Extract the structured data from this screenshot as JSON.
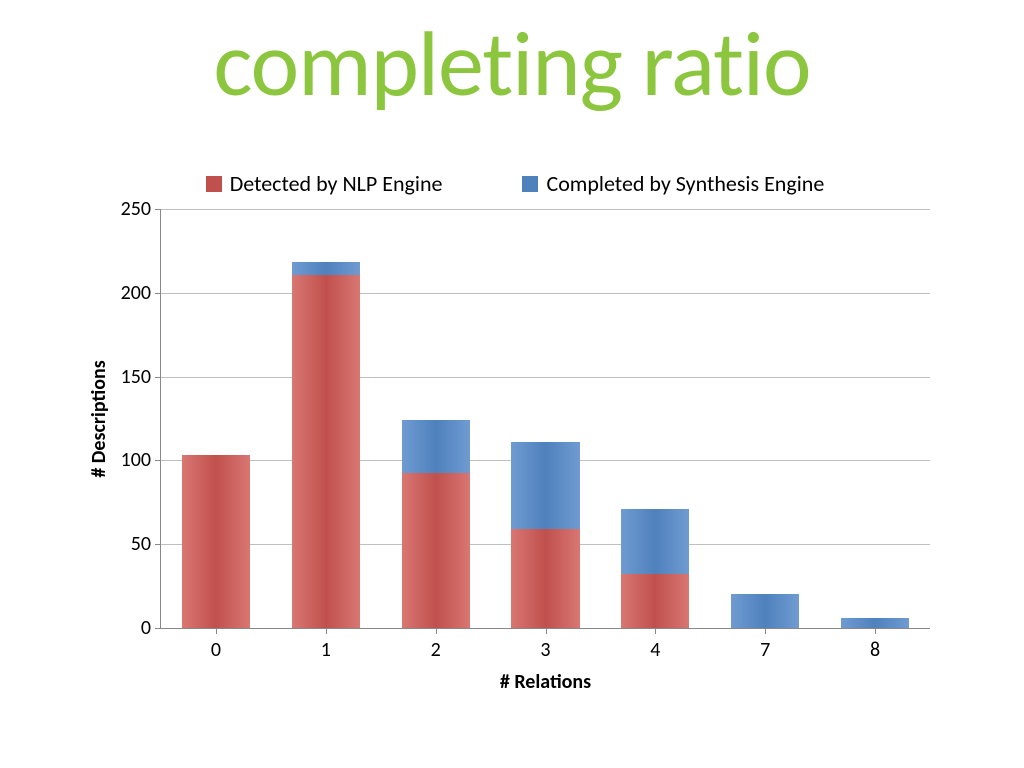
{
  "title": {
    "text": "completing ratio",
    "color": "#8cc63f"
  },
  "chart": {
    "type": "stacked-bar",
    "background_color": "#ffffff",
    "grid_color": "#bfbfbf",
    "axis_color": "#888888",
    "legend": {
      "items": [
        {
          "label": "Detected by NLP Engine",
          "color": "#c0504d",
          "gradient_light": "#d97773"
        },
        {
          "label": "Completed by Synthesis Engine",
          "color": "#4f81bd",
          "gradient_light": "#6f9bd1"
        }
      ],
      "fontsize": 22
    },
    "yaxis": {
      "title": "# Descriptions",
      "min": 0,
      "max": 250,
      "step": 50,
      "ticks": [
        0,
        50,
        100,
        150,
        200,
        250
      ],
      "label_fontsize": 20,
      "title_fontsize": 20
    },
    "xaxis": {
      "title": "# Relations",
      "label_fontsize": 20,
      "title_fontsize": 20
    },
    "categories": [
      "0",
      "1",
      "2",
      "3",
      "4",
      "7",
      "8"
    ],
    "series": [
      {
        "name": "Detected by NLP Engine",
        "values": [
          103,
          210,
          92,
          59,
          32,
          0,
          0
        ]
      },
      {
        "name": "Completed by Synthesis Engine",
        "values": [
          0,
          8,
          32,
          52,
          39,
          20,
          6
        ]
      }
    ],
    "bar_width_ratio": 0.62
  }
}
